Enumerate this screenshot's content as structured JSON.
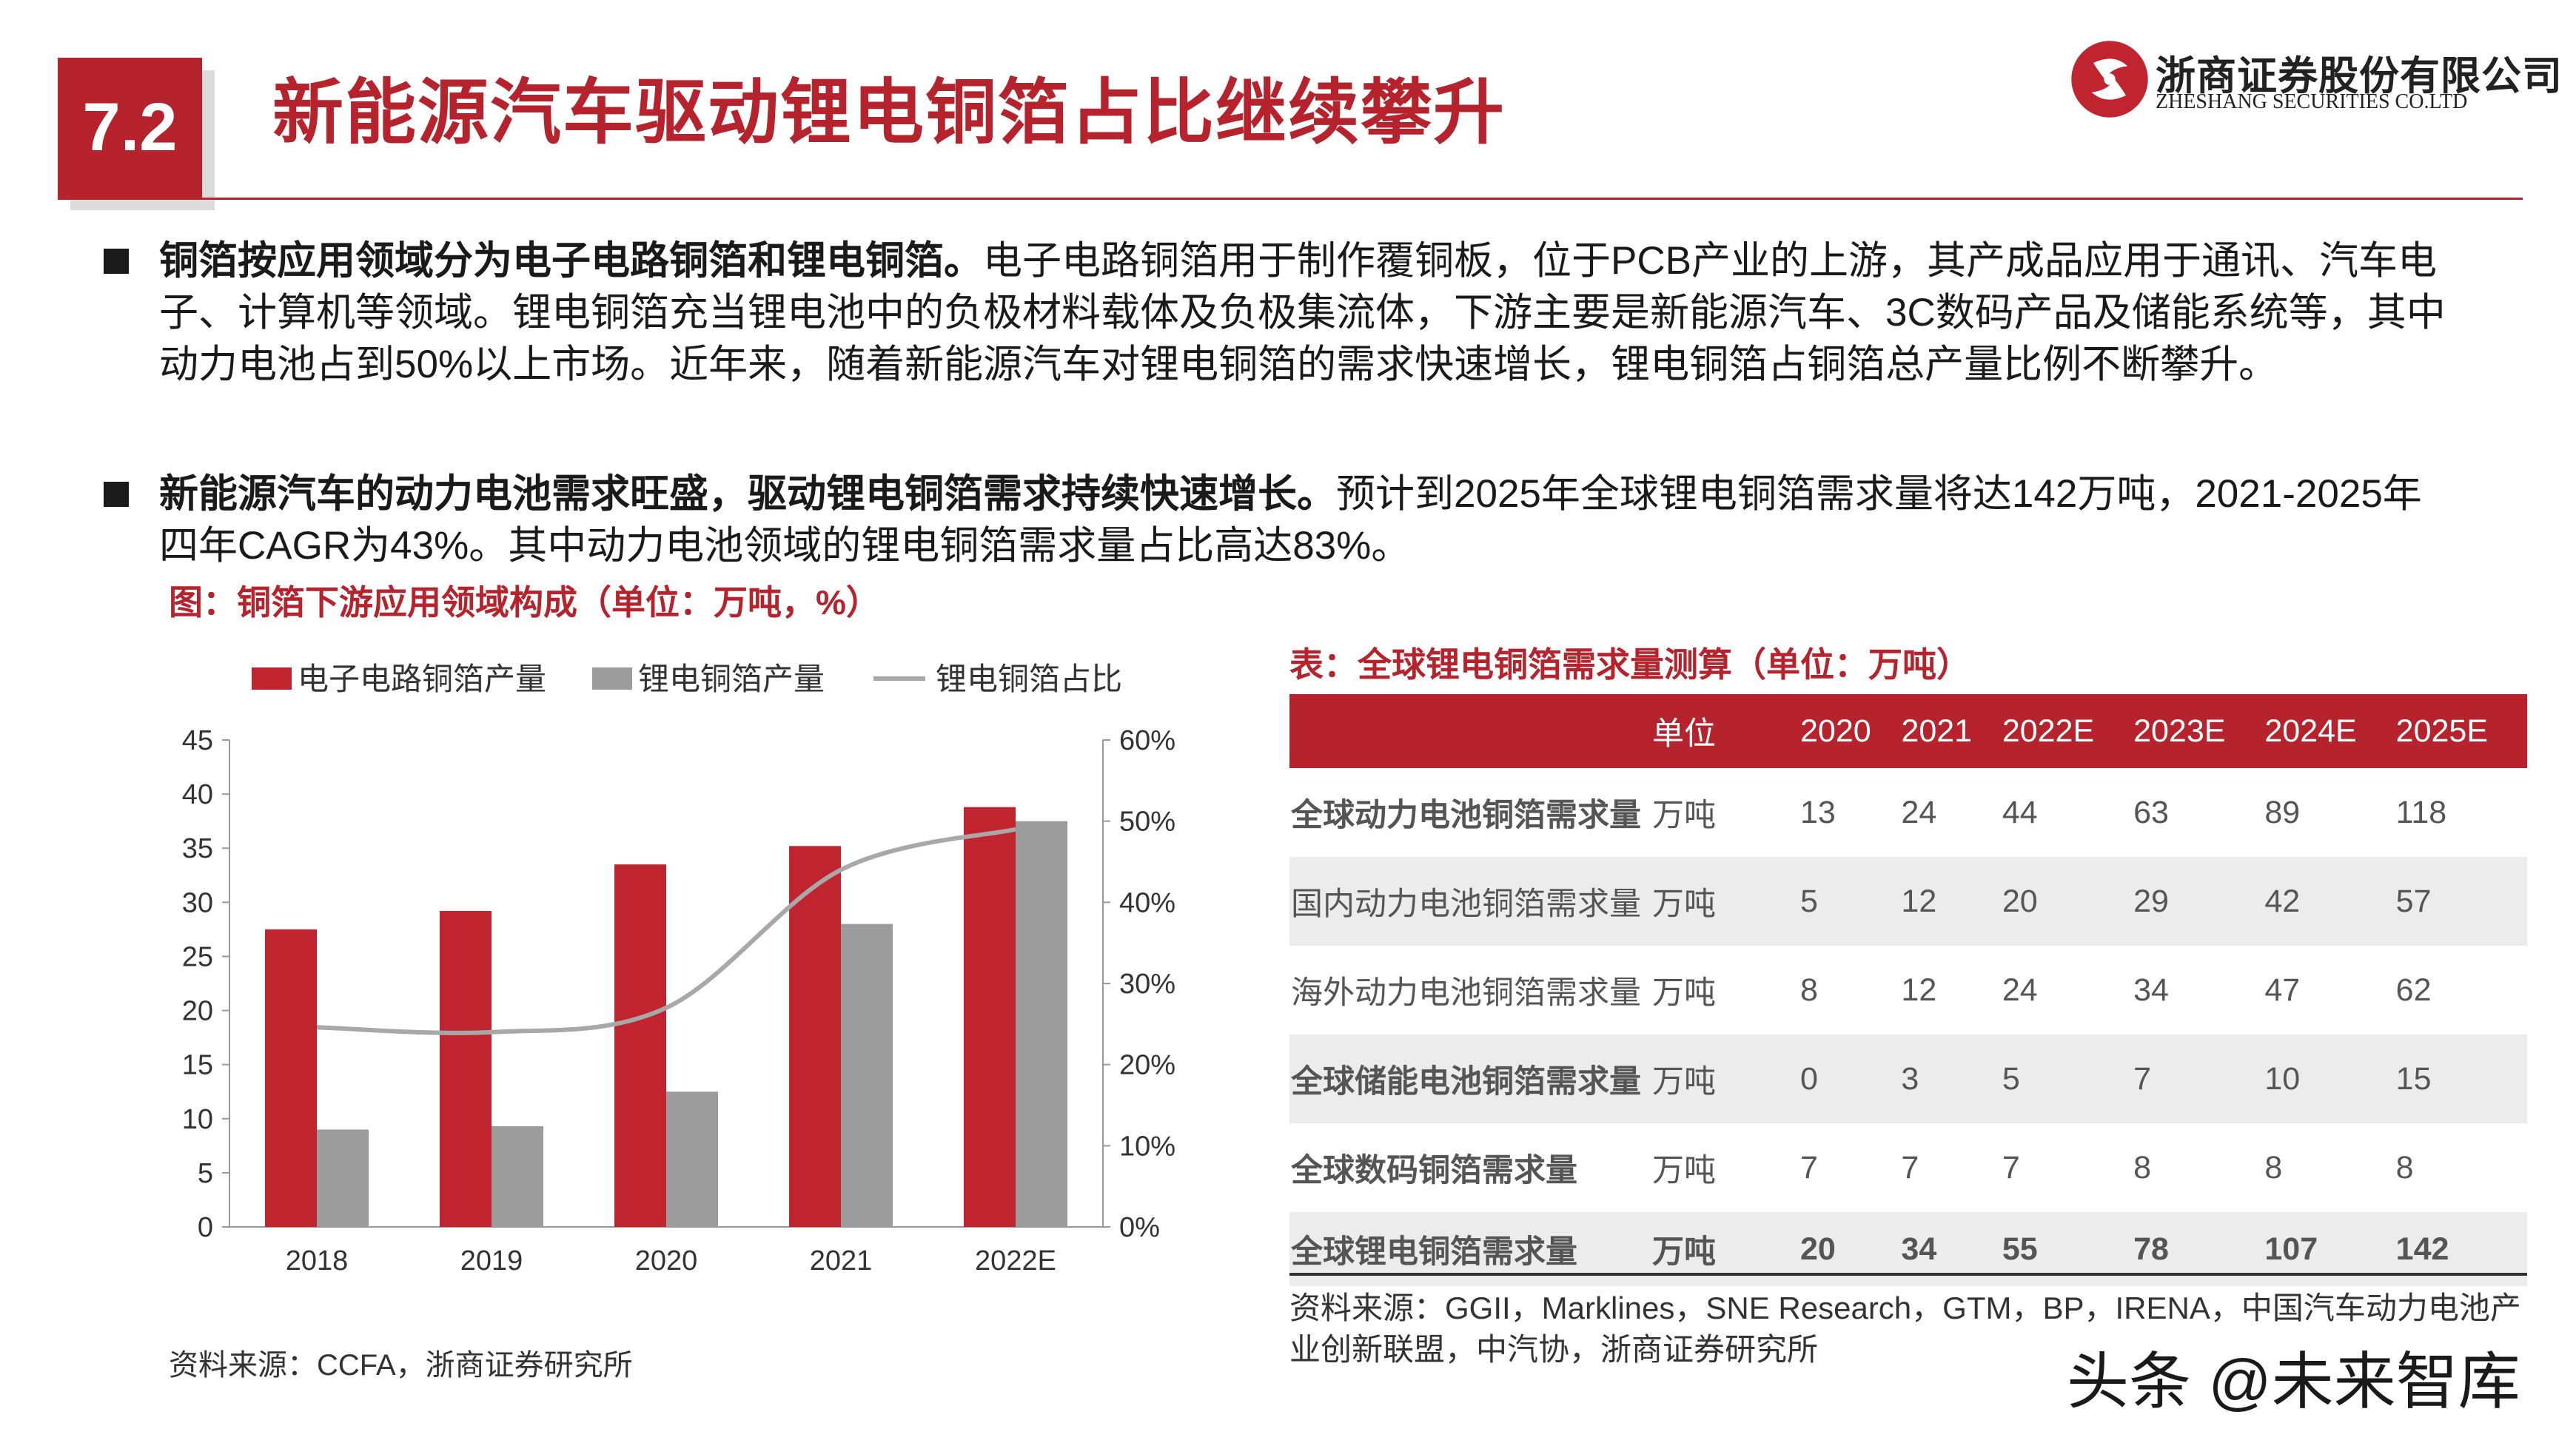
{
  "header": {
    "section_number": "7.2",
    "title": "新能源汽车驱动锂电铜箔占比继续攀升",
    "logo_cn": "浙商证券股份有限公司",
    "logo_en": "ZHESHANG SECURITIES CO.LTD",
    "brand_color": "#b7232c"
  },
  "bullets": [
    {
      "bold": "铜箔按应用领域分为电子电路铜箔和锂电铜箔。",
      "text": "电子电路铜箔用于制作覆铜板，位于PCB产业的上游，其产成品应用于通讯、汽车电子、计算机等领域。锂电铜箔充当锂电池中的负极材料载体及负极集流体，下游主要是新能源汽车、3C数码产品及储能系统等，其中动力电池占到50%以上市场。近年来，随着新能源汽车对锂电铜箔的需求快速增长，锂电铜箔占铜箔总产量比例不断攀升。"
    },
    {
      "bold": "新能源汽车的动力电池需求旺盛，驱动锂电铜箔需求持续快速增长。",
      "text": "预计到2025年全球锂电铜箔需求量将达142万吨，2021-2025年四年CAGR为43%。其中动力电池领域的锂电铜箔需求量占比高达83%。"
    }
  ],
  "chart_caption": "图：铜箔下游应用领域构成（单位：万吨，%）",
  "chart_source": "资料来源：CCFA，浙商证券研究所",
  "chart_data": {
    "type": "bar",
    "categories": [
      "2018",
      "2019",
      "2020",
      "2021",
      "2022E"
    ],
    "series": [
      {
        "name": "电子电路铜箔产量",
        "type": "bar",
        "axis": "left",
        "color": "#c0242e",
        "values": [
          27.5,
          29.2,
          33.5,
          35.2,
          38.8
        ]
      },
      {
        "name": "锂电铜箔产量",
        "type": "bar",
        "axis": "left",
        "color": "#9c9c9c",
        "values": [
          9.0,
          9.3,
          12.5,
          28.0,
          37.5
        ]
      },
      {
        "name": "锂电铜箔占比",
        "type": "line",
        "axis": "right",
        "color": "#a8a8a8",
        "values": [
          24.6,
          24.0,
          27.0,
          44.0,
          49.0
        ]
      }
    ],
    "left_axis": {
      "ticks": [
        "0",
        "5",
        "10",
        "15",
        "20",
        "25",
        "30",
        "35",
        "40",
        "45"
      ],
      "ylim": [
        0,
        45
      ]
    },
    "right_axis": {
      "ticks": [
        "0%",
        "10%",
        "20%",
        "30%",
        "40%",
        "50%",
        "60%"
      ],
      "ylim": [
        0,
        60
      ]
    },
    "legend_position": "top",
    "grid": false
  },
  "table": {
    "caption": "表：全球锂电铜箔需求量测算（单位：万吨）",
    "headers": [
      "",
      "单位",
      "2020",
      "2021",
      "2022E",
      "2023E",
      "2024E",
      "2025E"
    ],
    "rows": [
      {
        "name": "全球动力电池铜箔需求量",
        "unit": "万吨",
        "values": [
          "13",
          "24",
          "44",
          "63",
          "89",
          "118"
        ]
      },
      {
        "name": "国内动力电池铜箔需求量",
        "unit": "万吨",
        "values": [
          "5",
          "12",
          "20",
          "29",
          "42",
          "57"
        ]
      },
      {
        "name": "海外动力电池铜箔需求量",
        "unit": "万吨",
        "values": [
          "8",
          "12",
          "24",
          "34",
          "47",
          "62"
        ]
      },
      {
        "name": "全球储能电池铜箔需求量",
        "unit": "万吨",
        "values": [
          "0",
          "3",
          "5",
          "7",
          "10",
          "15"
        ]
      },
      {
        "name": "全球数码铜箔需求量",
        "unit": "万吨",
        "values": [
          "7",
          "7",
          "7",
          "8",
          "8",
          "8"
        ]
      },
      {
        "name": "全球锂电铜箔需求量",
        "unit": "万吨",
        "values": [
          "20",
          "34",
          "55",
          "78",
          "107",
          "142"
        ]
      }
    ],
    "source": "资料来源：GGII，Marklines，SNE Research，GTM，BP，IRENA，中国汽车动力电池产业创新联盟，中汽协，浙商证券研究所"
  },
  "watermark": "头条 @未来智库"
}
